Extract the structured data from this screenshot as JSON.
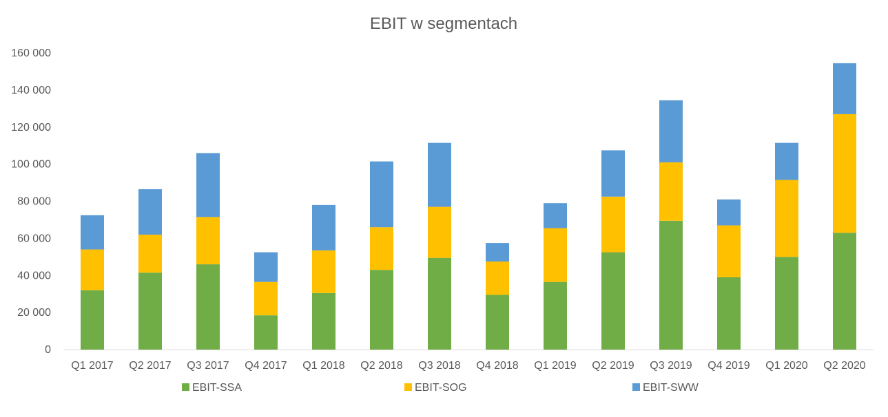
{
  "chart_data": {
    "type": "bar",
    "stacked": true,
    "title": "EBIT w segmentach",
    "xlabel": "",
    "ylabel": "",
    "ylim": [
      0,
      160000
    ],
    "yticks": [
      0,
      20000,
      40000,
      60000,
      80000,
      100000,
      120000,
      140000,
      160000
    ],
    "ytick_labels": [
      "0",
      "20 000",
      "40 000",
      "60 000",
      "80 000",
      "100 000",
      "120 000",
      "140 000",
      "160 000"
    ],
    "grid": false,
    "legend_position": "bottom",
    "categories": [
      "Q1 2017",
      "Q2 2017",
      "Q3 2017",
      "Q4 2017",
      "Q1 2018",
      "Q2 2018",
      "Q3 2018",
      "Q4 2018",
      "Q1 2019",
      "Q2 2019",
      "Q3 2019",
      "Q4 2019",
      "Q1 2020",
      "Q2 2020"
    ],
    "series": [
      {
        "name": "EBIT-SSA",
        "color": "#70ad47",
        "values": [
          32000,
          41500,
          46000,
          18500,
          30500,
          43000,
          49500,
          29500,
          36500,
          52500,
          69500,
          39000,
          50000,
          63000
        ]
      },
      {
        "name": "EBIT-SOG",
        "color": "#ffc000",
        "values": [
          22000,
          20500,
          25500,
          18000,
          23000,
          23000,
          27500,
          18000,
          29000,
          30000,
          31500,
          28000,
          41500,
          64000
        ]
      },
      {
        "name": "EBIT-SWW",
        "color": "#5b9bd5",
        "values": [
          18500,
          24500,
          34500,
          16000,
          24500,
          35500,
          34500,
          10000,
          13500,
          25000,
          33500,
          14000,
          20000,
          27500
        ]
      }
    ]
  }
}
